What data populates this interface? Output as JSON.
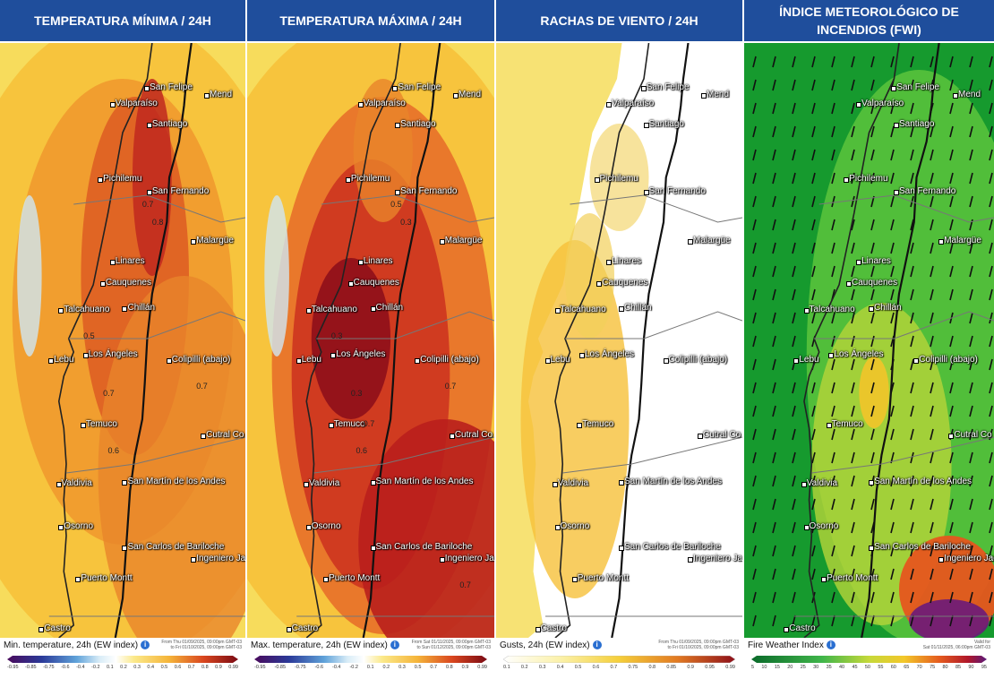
{
  "panels": [
    {
      "title_line1": "TEMPERATURA MÍNIMA / 24H",
      "title_line2": "",
      "legend_title": "Min. temperature, 24h (EW index)",
      "note_line1": "From Thu 01/09/2025, 09:00pm GMT-03",
      "note_line2": "to Fri 01/10/2025, 09:00pm GMT-03",
      "ticks": [
        "-0.95",
        "-0.85",
        "-0.75",
        "-0.6",
        "-0.4",
        "-0.2",
        "0.1",
        "0.2",
        "0.3",
        "0.4",
        "0.5",
        "0.6",
        "0.7",
        "0.8",
        "0.9",
        "0.99"
      ],
      "contours": [
        "0.7",
        "0.8",
        "0.5",
        "0.7",
        "0.7",
        "0.6"
      ]
    },
    {
      "title_line1": "TEMPERATURA  MÁXIMA / 24H",
      "title_line2": "",
      "legend_title": "Max. temperature, 24h (EW index)",
      "note_line1": "From Sat 01/11/2025, 09:00pm GMT-03",
      "note_line2": "to Sun 01/12/2025, 09:00pm GMT-03",
      "ticks": [
        "-0.95",
        "-0.85",
        "-0.75",
        "-0.6",
        "-0.4",
        "-0.2",
        "0.1",
        "0.2",
        "0.3",
        "0.5",
        "0.7",
        "0.8",
        "0.9",
        "0.99"
      ],
      "contours": [
        "0.5",
        "0.3",
        "0.3",
        "0.3",
        "0.7",
        "0.6",
        "0.7",
        "0.7"
      ]
    },
    {
      "title_line1": "RACHAS DE VIENTO / 24H",
      "title_line2": "",
      "legend_title": "Gusts, 24h (EW index)",
      "note_line1": "From Thu 01/09/2025, 09:00pm GMT-03",
      "note_line2": "to Fri 01/10/2025, 09:00pm GMT-03",
      "ticks": [
        "0.1",
        "0.2",
        "0.3",
        "0.4",
        "0.5",
        "0.6",
        "0.7",
        "0.75",
        "0.8",
        "0.85",
        "0.9",
        "0.95",
        "0.99"
      ],
      "contours": []
    },
    {
      "title_line1": "ÍNDICE METEOROLÓGICO DE",
      "title_line2": "INCENDIOS (FWI)",
      "legend_title": "Fire Weather Index",
      "note_line1": "Valid for",
      "note_line2": "Sat 01/11/2025, 06:00pm GMT-03",
      "ticks": [
        "5",
        "10",
        "15",
        "20",
        "25",
        "30",
        "35",
        "40",
        "45",
        "50",
        "55",
        "60",
        "65",
        "70",
        "75",
        "80",
        "85",
        "90",
        "95"
      ],
      "contours": []
    }
  ],
  "cities": [
    "San Felipe",
    "Valparaíso",
    "Santiago",
    "Pichilemu",
    "San Fernando",
    "Malargüe",
    "Linares",
    "Cauquenes",
    "Chillán",
    "Talcahuano",
    "Lebu",
    "Los Ángeles",
    "Colipilli (abajo)",
    "Temuco",
    "Cutral Co",
    "Valdivia",
    "San Martín de los Andes",
    "Osorno",
    "San Carlos de Bariloche",
    "Ingeniero Jacobacci",
    "Puerto Montt",
    "Castro",
    "Mend"
  ],
  "colors": {
    "header_bg": "#1f4e9c",
    "temp_yellow": "#f7d84a",
    "temp_orange": "#e8842a",
    "temp_red": "#c7301e",
    "temp_darkred": "#8e0f1a",
    "gust_white": "#ffffff",
    "fwi_green": "#1d9a34",
    "fwi_yellow": "#e6d52e",
    "fwi_red": "#d9241e",
    "fwi_purple": "#6a1a7a"
  }
}
